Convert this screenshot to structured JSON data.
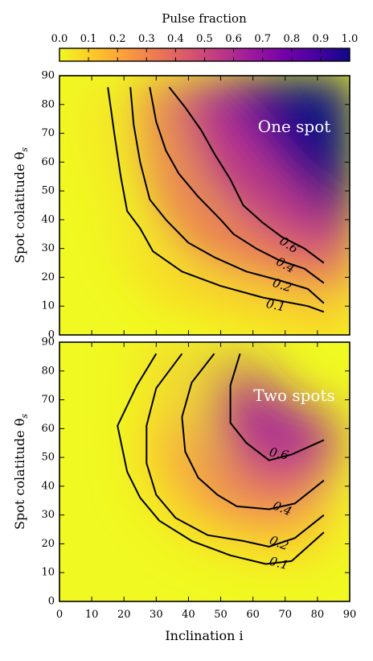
{
  "colorbar": {
    "title": "Pulse fraction",
    "ticks": [
      0.0,
      0.1,
      0.2,
      0.3,
      0.4,
      0.5,
      0.6,
      0.7,
      0.8,
      0.9,
      1.0
    ],
    "tick_labels": [
      "0.0",
      "0.1",
      "0.2",
      "0.3",
      "0.4",
      "0.5",
      "0.6",
      "0.7",
      "0.8",
      "0.9",
      "1.0"
    ],
    "colormap": "plasma_r",
    "colors": [
      "#f0f921",
      "#fdca26",
      "#fb9f3a",
      "#ed7953",
      "#d8576b",
      "#bd3786",
      "#9c179e",
      "#7201a8",
      "#46039f",
      "#0d0887"
    ]
  },
  "chart_data": [
    {
      "type": "heatmap",
      "annotation": "One spot",
      "xlabel": "",
      "ylabel": "Spot colatitude θ",
      "ylabel_subscript": "s",
      "xlim": [
        0,
        90
      ],
      "ylim": [
        0,
        90
      ],
      "xticks": [
        0,
        10,
        20,
        30,
        40,
        50,
        60,
        70,
        80,
        90
      ],
      "yticks": [
        0,
        10,
        20,
        30,
        40,
        50,
        60,
        70,
        80,
        90
      ],
      "show_x_tick_labels": false,
      "contours": [
        {
          "level": "0.1",
          "label_at": [
            67,
            10
          ],
          "label_angle": -12,
          "points": [
            [
              15,
              86
            ],
            [
              17,
              70
            ],
            [
              19,
              55
            ],
            [
              21,
              43
            ],
            [
              25,
              37
            ],
            [
              29,
              29
            ],
            [
              38,
              22
            ],
            [
              50,
              17
            ],
            [
              63,
              13
            ],
            [
              77,
              10
            ],
            [
              82,
              8
            ]
          ]
        },
        {
          "level": "0.2",
          "label_at": [
            69,
            17
          ],
          "label_angle": -18,
          "points": [
            [
              22,
              86
            ],
            [
              23,
              73
            ],
            [
              25,
              60
            ],
            [
              28,
              47
            ],
            [
              33,
              40
            ],
            [
              40,
              32
            ],
            [
              48,
              27
            ],
            [
              58,
              22
            ],
            [
              68,
              19
            ],
            [
              77,
              16
            ],
            [
              82,
              11
            ]
          ]
        },
        {
          "level": "0.4",
          "label_at": [
            70,
            24
          ],
          "label_angle": -28,
          "points": [
            [
              28,
              86
            ],
            [
              30,
              74
            ],
            [
              33,
              64
            ],
            [
              37,
              56
            ],
            [
              43,
              48
            ],
            [
              50,
              40
            ],
            [
              54,
              35
            ],
            [
              61,
              30
            ],
            [
              68,
              26
            ],
            [
              76,
              23
            ],
            [
              82,
              18
            ]
          ]
        },
        {
          "level": "0.6",
          "label_at": [
            71,
            31
          ],
          "label_angle": -33,
          "points": [
            [
              34,
              86
            ],
            [
              39,
              79
            ],
            [
              44,
              71
            ],
            [
              48,
              63
            ],
            [
              53,
              54
            ],
            [
              57,
              45
            ],
            [
              63,
              39
            ],
            [
              69,
              34
            ],
            [
              76,
              30
            ],
            [
              82,
              25
            ]
          ]
        }
      ]
    },
    {
      "type": "heatmap",
      "annotation": "Two spots",
      "xlabel": "Inclination i",
      "ylabel": "Spot colatitude θ",
      "ylabel_subscript": "s",
      "xlim": [
        0,
        90
      ],
      "ylim": [
        0,
        90
      ],
      "xticks": [
        0,
        10,
        20,
        30,
        40,
        50,
        60,
        70,
        80,
        90
      ],
      "yticks": [
        0,
        10,
        20,
        30,
        40,
        50,
        60,
        70,
        80,
        90
      ],
      "show_x_tick_labels": true,
      "contours": [
        {
          "level": "0.1",
          "label_at": [
            68,
            13
          ],
          "label_angle": -15,
          "points": [
            [
              30,
              86
            ],
            [
              24,
              75
            ],
            [
              18,
              61
            ],
            [
              21,
              45
            ],
            [
              25,
              36
            ],
            [
              31,
              28
            ],
            [
              41,
              21
            ],
            [
              53,
              16
            ],
            [
              64,
              13
            ],
            [
              72,
              14
            ],
            [
              78,
              20
            ],
            [
              82,
              24
            ]
          ]
        },
        {
          "level": "0.2",
          "label_at": [
            68,
            20
          ],
          "label_angle": -22,
          "points": [
            [
              38,
              86
            ],
            [
              30,
              74
            ],
            [
              27,
              61
            ],
            [
              27,
              48
            ],
            [
              30,
              37
            ],
            [
              36,
              29
            ],
            [
              46,
              23
            ],
            [
              57,
              21
            ],
            [
              65,
              19
            ],
            [
              73,
              22
            ],
            [
              82,
              30
            ]
          ]
        },
        {
          "level": "0.4",
          "label_at": [
            69,
            32
          ],
          "label_angle": -22,
          "points": [
            [
              48,
              86
            ],
            [
              41,
              76
            ],
            [
              38,
              64
            ],
            [
              39,
              52
            ],
            [
              43,
              43
            ],
            [
              49,
              37
            ],
            [
              55,
              33
            ],
            [
              65,
              32
            ],
            [
              73,
              34
            ],
            [
              82,
              42
            ]
          ]
        },
        {
          "level": "0.6",
          "label_at": [
            68,
            51
          ],
          "label_angle": -12,
          "points": [
            [
              56,
              86
            ],
            [
              53,
              75
            ],
            [
              53,
              62
            ],
            [
              58,
              55
            ],
            [
              65,
              49
            ],
            [
              72,
              51
            ],
            [
              82,
              56
            ]
          ]
        }
      ]
    }
  ]
}
